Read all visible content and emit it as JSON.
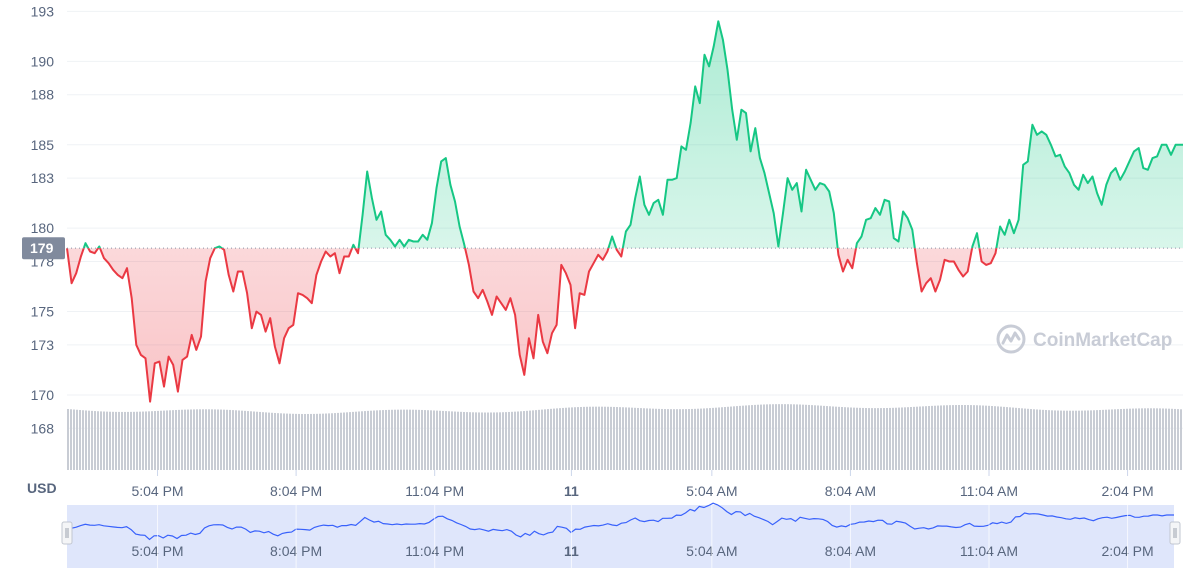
{
  "chart_data": {
    "type": "line",
    "currency_label": "USD",
    "y_ticks": [
      168,
      170,
      173,
      175,
      178,
      180,
      183,
      185,
      188,
      190,
      193
    ],
    "ylim": [
      165.5,
      193.2
    ],
    "baseline_value": 178.8,
    "baseline_label": "179",
    "x_ticks": [
      {
        "label": "5:04 PM",
        "t": 5.04,
        "bold": false
      },
      {
        "label": "8:04 PM",
        "t": 8.04,
        "bold": false
      },
      {
        "label": "11:04 PM",
        "t": 11.04,
        "bold": false
      },
      {
        "label": "11",
        "t": 14.0,
        "bold": true
      },
      {
        "label": "5:04 AM",
        "t": 17.04,
        "bold": false
      },
      {
        "label": "8:04 AM",
        "t": 20.04,
        "bold": false
      },
      {
        "label": "11:04 AM",
        "t": 23.04,
        "bold": false
      },
      {
        "label": "2:04 PM",
        "t": 26.04,
        "bold": false
      }
    ],
    "xlim": [
      3.08,
      27.24
    ],
    "series": [
      {
        "values": [
          [
            3.08,
            178.8
          ],
          [
            3.18,
            176.7
          ],
          [
            3.28,
            177.3
          ],
          [
            3.38,
            178.3
          ],
          [
            3.48,
            179.1
          ],
          [
            3.58,
            178.6
          ],
          [
            3.68,
            178.5
          ],
          [
            3.78,
            178.9
          ],
          [
            3.88,
            178.2
          ],
          [
            3.98,
            177.9
          ],
          [
            4.08,
            177.5
          ],
          [
            4.18,
            177.2
          ],
          [
            4.28,
            177.0
          ],
          [
            4.38,
            177.6
          ],
          [
            4.48,
            175.8
          ],
          [
            4.58,
            173.0
          ],
          [
            4.68,
            172.4
          ],
          [
            4.78,
            172.2
          ],
          [
            4.88,
            169.6
          ],
          [
            4.98,
            171.9
          ],
          [
            5.08,
            172.0
          ],
          [
            5.18,
            170.5
          ],
          [
            5.28,
            172.3
          ],
          [
            5.38,
            171.8
          ],
          [
            5.48,
            170.2
          ],
          [
            5.58,
            172.1
          ],
          [
            5.68,
            172.3
          ],
          [
            5.78,
            173.6
          ],
          [
            5.88,
            172.7
          ],
          [
            5.98,
            173.5
          ],
          [
            6.08,
            176.8
          ],
          [
            6.18,
            178.2
          ],
          [
            6.28,
            178.8
          ],
          [
            6.38,
            178.9
          ],
          [
            6.48,
            178.7
          ],
          [
            6.58,
            177.2
          ],
          [
            6.68,
            176.2
          ],
          [
            6.78,
            177.4
          ],
          [
            6.88,
            177.4
          ],
          [
            6.98,
            176.1
          ],
          [
            7.08,
            174.0
          ],
          [
            7.18,
            175.0
          ],
          [
            7.28,
            174.8
          ],
          [
            7.38,
            173.8
          ],
          [
            7.48,
            174.6
          ],
          [
            7.58,
            172.9
          ],
          [
            7.68,
            171.9
          ],
          [
            7.78,
            173.4
          ],
          [
            7.88,
            174.0
          ],
          [
            7.98,
            174.2
          ],
          [
            8.08,
            176.1
          ],
          [
            8.18,
            176.0
          ],
          [
            8.28,
            175.8
          ],
          [
            8.38,
            175.5
          ],
          [
            8.48,
            177.2
          ],
          [
            8.58,
            178.0
          ],
          [
            8.68,
            178.6
          ],
          [
            8.78,
            178.3
          ],
          [
            8.88,
            178.5
          ],
          [
            8.98,
            177.3
          ],
          [
            9.08,
            178.3
          ],
          [
            9.18,
            178.3
          ],
          [
            9.28,
            179.0
          ],
          [
            9.38,
            178.5
          ],
          [
            9.48,
            180.8
          ],
          [
            9.58,
            183.4
          ],
          [
            9.68,
            181.8
          ],
          [
            9.78,
            180.5
          ],
          [
            9.88,
            181.0
          ],
          [
            9.98,
            179.6
          ],
          [
            10.08,
            179.3
          ],
          [
            10.18,
            178.9
          ],
          [
            10.28,
            179.3
          ],
          [
            10.38,
            178.9
          ],
          [
            10.48,
            179.3
          ],
          [
            10.58,
            179.2
          ],
          [
            10.68,
            179.2
          ],
          [
            10.78,
            179.6
          ],
          [
            10.88,
            179.3
          ],
          [
            10.98,
            180.3
          ],
          [
            11.08,
            182.4
          ],
          [
            11.18,
            184.0
          ],
          [
            11.28,
            184.2
          ],
          [
            11.38,
            182.6
          ],
          [
            11.48,
            181.6
          ],
          [
            11.58,
            180.1
          ],
          [
            11.68,
            179.0
          ],
          [
            11.78,
            177.8
          ],
          [
            11.88,
            176.2
          ],
          [
            11.98,
            175.8
          ],
          [
            12.08,
            176.3
          ],
          [
            12.18,
            175.6
          ],
          [
            12.28,
            174.8
          ],
          [
            12.38,
            175.9
          ],
          [
            12.48,
            175.5
          ],
          [
            12.58,
            175.1
          ],
          [
            12.68,
            175.8
          ],
          [
            12.78,
            174.8
          ],
          [
            12.88,
            172.4
          ],
          [
            12.98,
            171.2
          ],
          [
            13.08,
            173.4
          ],
          [
            13.18,
            172.2
          ],
          [
            13.28,
            174.8
          ],
          [
            13.38,
            173.2
          ],
          [
            13.48,
            172.5
          ],
          [
            13.58,
            173.7
          ],
          [
            13.68,
            174.2
          ],
          [
            13.78,
            177.8
          ],
          [
            13.88,
            177.3
          ],
          [
            13.98,
            176.6
          ],
          [
            14.08,
            174.0
          ],
          [
            14.18,
            176.1
          ],
          [
            14.28,
            176.0
          ],
          [
            14.38,
            177.4
          ],
          [
            14.48,
            177.9
          ],
          [
            14.58,
            178.4
          ],
          [
            14.68,
            178.1
          ],
          [
            14.78,
            178.6
          ],
          [
            14.88,
            179.5
          ],
          [
            14.98,
            178.7
          ],
          [
            15.08,
            178.3
          ],
          [
            15.18,
            179.8
          ],
          [
            15.28,
            180.2
          ],
          [
            15.38,
            181.8
          ],
          [
            15.48,
            183.1
          ],
          [
            15.58,
            181.4
          ],
          [
            15.68,
            180.8
          ],
          [
            15.78,
            181.5
          ],
          [
            15.88,
            181.7
          ],
          [
            15.98,
            180.8
          ],
          [
            16.08,
            182.9
          ],
          [
            16.18,
            182.9
          ],
          [
            16.28,
            183.0
          ],
          [
            16.38,
            184.9
          ],
          [
            16.48,
            184.7
          ],
          [
            16.58,
            186.3
          ],
          [
            16.68,
            188.5
          ],
          [
            16.78,
            187.5
          ],
          [
            16.88,
            190.4
          ],
          [
            16.98,
            189.7
          ],
          [
            17.08,
            190.9
          ],
          [
            17.18,
            192.4
          ],
          [
            17.28,
            191.3
          ],
          [
            17.38,
            189.5
          ],
          [
            17.48,
            187.1
          ],
          [
            17.58,
            185.3
          ],
          [
            17.68,
            187.1
          ],
          [
            17.78,
            186.9
          ],
          [
            17.88,
            184.6
          ],
          [
            17.98,
            186.0
          ],
          [
            18.08,
            184.2
          ],
          [
            18.18,
            183.3
          ],
          [
            18.28,
            182.1
          ],
          [
            18.38,
            180.9
          ],
          [
            18.48,
            178.9
          ],
          [
            18.58,
            180.9
          ],
          [
            18.68,
            183.0
          ],
          [
            18.78,
            182.3
          ],
          [
            18.88,
            182.7
          ],
          [
            18.98,
            181.0
          ],
          [
            19.08,
            183.5
          ],
          [
            19.18,
            182.9
          ],
          [
            19.28,
            182.3
          ],
          [
            19.38,
            182.7
          ],
          [
            19.48,
            182.6
          ],
          [
            19.58,
            182.2
          ],
          [
            19.68,
            180.9
          ],
          [
            19.78,
            178.4
          ],
          [
            19.88,
            177.4
          ],
          [
            19.98,
            178.1
          ],
          [
            20.08,
            177.6
          ],
          [
            20.18,
            179.1
          ],
          [
            20.28,
            179.5
          ],
          [
            20.38,
            180.5
          ],
          [
            20.48,
            180.6
          ],
          [
            20.58,
            181.2
          ],
          [
            20.68,
            180.8
          ],
          [
            20.78,
            181.7
          ],
          [
            20.88,
            181.6
          ],
          [
            20.98,
            179.4
          ],
          [
            21.08,
            179.2
          ],
          [
            21.18,
            181.0
          ],
          [
            21.28,
            180.6
          ],
          [
            21.38,
            179.9
          ],
          [
            21.48,
            177.9
          ],
          [
            21.58,
            176.2
          ],
          [
            21.68,
            176.7
          ],
          [
            21.78,
            177.0
          ],
          [
            21.88,
            176.2
          ],
          [
            21.98,
            176.9
          ],
          [
            22.08,
            178.1
          ],
          [
            22.18,
            178.0
          ],
          [
            22.28,
            178.0
          ],
          [
            22.38,
            177.5
          ],
          [
            22.48,
            177.1
          ],
          [
            22.58,
            177.4
          ],
          [
            22.68,
            178.9
          ],
          [
            22.78,
            179.7
          ],
          [
            22.88,
            178.0
          ],
          [
            22.98,
            177.8
          ],
          [
            23.08,
            177.9
          ],
          [
            23.18,
            178.5
          ],
          [
            23.28,
            180.1
          ],
          [
            23.38,
            179.6
          ],
          [
            23.48,
            180.5
          ],
          [
            23.58,
            179.7
          ],
          [
            23.68,
            180.5
          ],
          [
            23.78,
            183.8
          ],
          [
            23.88,
            184.0
          ],
          [
            23.98,
            186.2
          ],
          [
            24.08,
            185.6
          ],
          [
            24.18,
            185.8
          ],
          [
            24.28,
            185.6
          ],
          [
            24.38,
            185.0
          ],
          [
            24.48,
            184.3
          ],
          [
            24.58,
            184.4
          ],
          [
            24.68,
            183.7
          ],
          [
            24.78,
            183.3
          ],
          [
            24.88,
            182.6
          ],
          [
            24.98,
            182.3
          ],
          [
            25.08,
            183.2
          ],
          [
            25.18,
            182.7
          ],
          [
            25.28,
            183.1
          ],
          [
            25.38,
            182.1
          ],
          [
            25.48,
            181.4
          ],
          [
            25.58,
            182.6
          ],
          [
            25.68,
            183.3
          ],
          [
            25.78,
            183.6
          ],
          [
            25.88,
            182.9
          ],
          [
            25.98,
            183.4
          ],
          [
            26.08,
            184.0
          ],
          [
            26.18,
            184.6
          ],
          [
            26.28,
            184.8
          ],
          [
            26.38,
            183.6
          ],
          [
            26.48,
            183.5
          ],
          [
            26.58,
            184.2
          ],
          [
            26.68,
            184.3
          ],
          [
            26.78,
            185.0
          ],
          [
            26.88,
            185.0
          ],
          [
            26.98,
            184.4
          ],
          [
            27.08,
            185.0
          ],
          [
            27.18,
            185.0
          ],
          [
            27.24,
            185.0
          ]
        ]
      }
    ],
    "colors": {
      "up": "#16c784",
      "down": "#ea3943",
      "volume": "#c8ccd4",
      "grid": "#eff2f5",
      "baseline": "#8a93a6",
      "price_tag": "#808a9d",
      "navigator_fill": "#dfe6fb",
      "navigator_line": "#3861fb",
      "navigator_handle": "#e0e3e8"
    }
  },
  "watermark": {
    "text": "CoinMarketCap",
    "icon": "coinmarketcap-logo-icon"
  }
}
